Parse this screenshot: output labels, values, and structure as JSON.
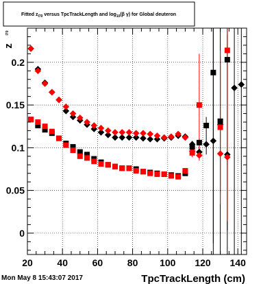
{
  "chart_data": {
    "type": "scatter",
    "title": {
      "parts": [
        {
          "text": "Fitted  z",
          "role": "normal"
        },
        {
          "text": "I70",
          "role": "sub"
        },
        {
          "text": "  versus  TpcTrackLength and log",
          "role": "normal"
        },
        {
          "text": "10",
          "role": "sub"
        },
        {
          "text": "(β γ) for Global deuteron",
          "role": "normal"
        }
      ]
    },
    "xlabel": "TpcTrackLength (cm)",
    "ylabel": "z",
    "ylabel_sub": "I70",
    "xlim": [
      20,
      145
    ],
    "ylim": [
      -0.025,
      0.24
    ],
    "x_ticks": [
      20,
      40,
      60,
      80,
      100,
      120,
      140
    ],
    "y_ticks": [
      0,
      0.05,
      0.1,
      0.15,
      0.2
    ],
    "y_tick_labels": [
      "0",
      "0.05",
      "0.1",
      "0.15",
      "0.2"
    ],
    "grid": true,
    "timestamp": "Mon May  8 15:43:07 2017",
    "series": [
      {
        "marker": "diamond",
        "color": "#000000",
        "points": [
          {
            "x": 22,
            "y": 0.216,
            "err": 0.001
          },
          {
            "x": 26,
            "y": 0.192,
            "err": 0.001
          },
          {
            "x": 30,
            "y": 0.176,
            "err": 0.001
          },
          {
            "x": 34,
            "y": 0.165,
            "err": 0.001
          },
          {
            "x": 38,
            "y": 0.156,
            "err": 0.001
          },
          {
            "x": 42,
            "y": 0.143,
            "err": 0.001
          },
          {
            "x": 46,
            "y": 0.136,
            "err": 0.001
          },
          {
            "x": 50,
            "y": 0.132,
            "err": 0.001
          },
          {
            "x": 54,
            "y": 0.127,
            "err": 0.001
          },
          {
            "x": 58,
            "y": 0.122,
            "err": 0.001
          },
          {
            "x": 62,
            "y": 0.118,
            "err": 0.001
          },
          {
            "x": 66,
            "y": 0.115,
            "err": 0.001
          },
          {
            "x": 70,
            "y": 0.112,
            "err": 0.001
          },
          {
            "x": 74,
            "y": 0.112,
            "err": 0.001
          },
          {
            "x": 78,
            "y": 0.112,
            "err": 0.001
          },
          {
            "x": 82,
            "y": 0.112,
            "err": 0.001
          },
          {
            "x": 86,
            "y": 0.111,
            "err": 0.001
          },
          {
            "x": 90,
            "y": 0.11,
            "err": 0.001
          },
          {
            "x": 94,
            "y": 0.11,
            "err": 0.001
          },
          {
            "x": 98,
            "y": 0.111,
            "err": 0.001
          },
          {
            "x": 102,
            "y": 0.112,
            "err": 0.001
          },
          {
            "x": 106,
            "y": 0.114,
            "err": 0.001
          },
          {
            "x": 110,
            "y": 0.113,
            "err": 0.002
          },
          {
            "x": 114,
            "y": 0.104,
            "err": 0.004
          },
          {
            "x": 118,
            "y": 0.095,
            "err": 0.006
          },
          {
            "x": 122,
            "y": 0.104,
            "err": 0.012
          },
          {
            "x": 126,
            "y": 0.108,
            "err": 0.14
          },
          {
            "x": 130,
            "y": 0.127,
            "err": 0.08
          },
          {
            "x": 134,
            "y": 0.092,
            "err": 0.14
          },
          {
            "x": 138,
            "y": 0.17,
            "err": 0.2
          },
          {
            "x": 142,
            "y": 0.174,
            "err": 0.2
          }
        ]
      },
      {
        "marker": "diamond",
        "color": "#ff0000",
        "points": [
          {
            "x": 22,
            "y": 0.216,
            "err": 0.001
          },
          {
            "x": 26,
            "y": 0.19,
            "err": 0.001
          },
          {
            "x": 30,
            "y": 0.175,
            "err": 0.001
          },
          {
            "x": 34,
            "y": 0.165,
            "err": 0.001
          },
          {
            "x": 38,
            "y": 0.156,
            "err": 0.001
          },
          {
            "x": 42,
            "y": 0.148,
            "err": 0.001
          },
          {
            "x": 46,
            "y": 0.14,
            "err": 0.001
          },
          {
            "x": 50,
            "y": 0.135,
            "err": 0.001
          },
          {
            "x": 54,
            "y": 0.13,
            "err": 0.001
          },
          {
            "x": 58,
            "y": 0.126,
            "err": 0.001
          },
          {
            "x": 62,
            "y": 0.123,
            "err": 0.001
          },
          {
            "x": 66,
            "y": 0.12,
            "err": 0.001
          },
          {
            "x": 70,
            "y": 0.118,
            "err": 0.001
          },
          {
            "x": 74,
            "y": 0.118,
            "err": 0.001
          },
          {
            "x": 78,
            "y": 0.118,
            "err": 0.001
          },
          {
            "x": 82,
            "y": 0.117,
            "err": 0.001
          },
          {
            "x": 86,
            "y": 0.117,
            "err": 0.001
          },
          {
            "x": 90,
            "y": 0.116,
            "err": 0.001
          },
          {
            "x": 94,
            "y": 0.114,
            "err": 0.001
          },
          {
            "x": 98,
            "y": 0.112,
            "err": 0.001
          },
          {
            "x": 102,
            "y": 0.113,
            "err": 0.001
          },
          {
            "x": 106,
            "y": 0.116,
            "err": 0.001
          },
          {
            "x": 110,
            "y": 0.112,
            "err": 0.002
          },
          {
            "x": 114,
            "y": 0.096,
            "err": 0.004
          },
          {
            "x": 118,
            "y": 0.091,
            "err": 0.006
          },
          {
            "x": 130,
            "y": 0.093,
            "err": 0.004
          },
          {
            "x": 134,
            "y": 0.089,
            "err": 0.004
          }
        ]
      },
      {
        "marker": "square",
        "color": "#000000",
        "points": [
          {
            "x": 22,
            "y": 0.133,
            "err": 0.001
          },
          {
            "x": 26,
            "y": 0.126,
            "err": 0.001
          },
          {
            "x": 30,
            "y": 0.121,
            "err": 0.001
          },
          {
            "x": 34,
            "y": 0.117,
            "err": 0.001
          },
          {
            "x": 38,
            "y": 0.111,
            "err": 0.001
          },
          {
            "x": 42,
            "y": 0.105,
            "err": 0.001
          },
          {
            "x": 46,
            "y": 0.101,
            "err": 0.001
          },
          {
            "x": 50,
            "y": 0.095,
            "err": 0.001
          },
          {
            "x": 54,
            "y": 0.092,
            "err": 0.001
          },
          {
            "x": 58,
            "y": 0.087,
            "err": 0.001
          },
          {
            "x": 62,
            "y": 0.083,
            "err": 0.001
          },
          {
            "x": 66,
            "y": 0.08,
            "err": 0.001
          },
          {
            "x": 70,
            "y": 0.078,
            "err": 0.001
          },
          {
            "x": 74,
            "y": 0.076,
            "err": 0.001
          },
          {
            "x": 78,
            "y": 0.076,
            "err": 0.001
          },
          {
            "x": 82,
            "y": 0.075,
            "err": 0.001
          },
          {
            "x": 86,
            "y": 0.072,
            "err": 0.001
          },
          {
            "x": 90,
            "y": 0.071,
            "err": 0.001
          },
          {
            "x": 94,
            "y": 0.07,
            "err": 0.001
          },
          {
            "x": 98,
            "y": 0.069,
            "err": 0.001
          },
          {
            "x": 102,
            "y": 0.068,
            "err": 0.001
          },
          {
            "x": 106,
            "y": 0.067,
            "err": 0.001
          },
          {
            "x": 110,
            "y": 0.07,
            "err": 0.002
          },
          {
            "x": 114,
            "y": 0.101,
            "err": 0.004
          },
          {
            "x": 118,
            "y": 0.106,
            "err": 0.005
          },
          {
            "x": 122,
            "y": 0.126,
            "err": 0.01
          },
          {
            "x": 126,
            "y": 0.188,
            "err": 0.2
          },
          {
            "x": 130,
            "y": 0.131,
            "err": 0.2
          },
          {
            "x": 134,
            "y": 0.203,
            "err": 0.2
          }
        ]
      },
      {
        "marker": "square",
        "color": "#ff0000",
        "points": [
          {
            "x": 22,
            "y": 0.133,
            "err": 0.001
          },
          {
            "x": 26,
            "y": 0.13,
            "err": 0.001
          },
          {
            "x": 30,
            "y": 0.125,
            "err": 0.001
          },
          {
            "x": 34,
            "y": 0.119,
            "err": 0.001
          },
          {
            "x": 38,
            "y": 0.111,
            "err": 0.001
          },
          {
            "x": 42,
            "y": 0.103,
            "err": 0.001
          },
          {
            "x": 46,
            "y": 0.097,
            "err": 0.001
          },
          {
            "x": 50,
            "y": 0.09,
            "err": 0.001
          },
          {
            "x": 54,
            "y": 0.088,
            "err": 0.001
          },
          {
            "x": 58,
            "y": 0.084,
            "err": 0.001
          },
          {
            "x": 62,
            "y": 0.081,
            "err": 0.001
          },
          {
            "x": 66,
            "y": 0.08,
            "err": 0.001
          },
          {
            "x": 70,
            "y": 0.078,
            "err": 0.001
          },
          {
            "x": 74,
            "y": 0.076,
            "err": 0.001
          },
          {
            "x": 78,
            "y": 0.076,
            "err": 0.001
          },
          {
            "x": 82,
            "y": 0.073,
            "err": 0.001
          },
          {
            "x": 86,
            "y": 0.072,
            "err": 0.001
          },
          {
            "x": 90,
            "y": 0.07,
            "err": 0.001
          },
          {
            "x": 94,
            "y": 0.069,
            "err": 0.001
          },
          {
            "x": 98,
            "y": 0.069,
            "err": 0.001
          },
          {
            "x": 102,
            "y": 0.067,
            "err": 0.001
          },
          {
            "x": 106,
            "y": 0.066,
            "err": 0.001
          },
          {
            "x": 110,
            "y": 0.073,
            "err": 0.003
          },
          {
            "x": 114,
            "y": 0.094,
            "err": 0.005
          },
          {
            "x": 118,
            "y": 0.15,
            "err": 0.06
          },
          {
            "x": 130,
            "y": 0.124,
            "err": 0.09
          },
          {
            "x": 134,
            "y": 0.214,
            "err": 0.2
          }
        ]
      }
    ]
  }
}
